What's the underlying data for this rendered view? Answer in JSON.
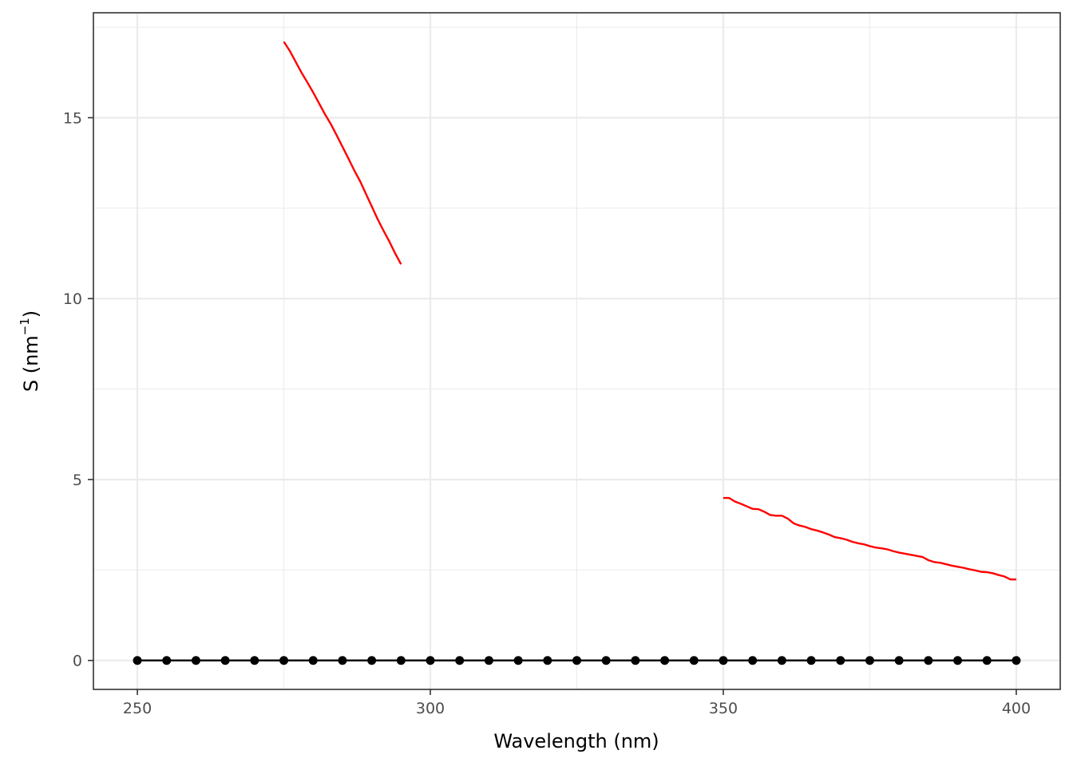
{
  "chart_data": {
    "type": "line",
    "xlabel": "Wavelength (nm)",
    "ylabel": {
      "prefix": "S (nm",
      "superscript": "−1",
      "suffix": ")"
    },
    "xlim": [
      242.5,
      407.5
    ],
    "ylim": [
      -0.8,
      17.9
    ],
    "x_ticks": [
      250,
      300,
      350,
      400
    ],
    "x_tick_labels": [
      "250",
      "300",
      "350",
      "400"
    ],
    "y_ticks": [
      0,
      5,
      10,
      15
    ],
    "y_tick_labels": [
      "0",
      "5",
      "10",
      "15"
    ],
    "grid": true,
    "legend": "none",
    "series": [
      {
        "style": "line+points",
        "color": "#000000",
        "x": [
          250,
          255,
          260,
          265,
          270,
          275,
          280,
          285,
          290,
          295,
          300,
          305,
          310,
          315,
          320,
          325,
          330,
          335,
          340,
          345,
          350,
          355,
          360,
          365,
          370,
          375,
          380,
          385,
          390,
          395,
          400
        ],
        "y": [
          0,
          0,
          0,
          0,
          0,
          0,
          0,
          0,
          0,
          0,
          0,
          0,
          0,
          0,
          0,
          0,
          0,
          0,
          0,
          0,
          0,
          0,
          0,
          0,
          0,
          0,
          0,
          0,
          0,
          0,
          0
        ]
      },
      {
        "style": "line",
        "color": "#ff0000",
        "x": [
          275,
          276,
          277,
          278,
          279,
          280,
          281,
          282,
          283,
          284,
          285,
          286,
          287,
          288,
          289,
          290,
          291,
          292,
          293,
          294,
          295
        ],
        "y": [
          17.1,
          16.85,
          16.55,
          16.25,
          15.98,
          15.7,
          15.4,
          15.1,
          14.83,
          14.52,
          14.2,
          13.88,
          13.55,
          13.25,
          12.9,
          12.55,
          12.2,
          11.88,
          11.58,
          11.25,
          10.95
        ]
      },
      {
        "style": "line",
        "color": "#ff0000",
        "x": [
          350,
          351,
          352,
          353,
          354,
          355,
          356,
          357,
          358,
          359,
          360,
          361,
          362,
          363,
          364,
          365,
          366,
          367,
          368,
          369,
          370,
          371,
          372,
          373,
          374,
          375,
          376,
          377,
          378,
          379,
          380,
          381,
          382,
          383,
          384,
          385,
          386,
          387,
          388,
          389,
          390,
          391,
          392,
          393,
          394,
          395,
          396,
          397,
          398,
          399,
          400
        ],
        "y": [
          4.49,
          4.49,
          4.39,
          4.33,
          4.26,
          4.19,
          4.18,
          4.11,
          4.02,
          4.0,
          4.0,
          3.92,
          3.79,
          3.73,
          3.69,
          3.63,
          3.59,
          3.54,
          3.48,
          3.41,
          3.38,
          3.34,
          3.28,
          3.24,
          3.21,
          3.16,
          3.12,
          3.1,
          3.07,
          3.02,
          2.98,
          2.95,
          2.92,
          2.89,
          2.86,
          2.77,
          2.72,
          2.7,
          2.66,
          2.62,
          2.59,
          2.56,
          2.52,
          2.49,
          2.45,
          2.44,
          2.41,
          2.36,
          2.32,
          2.24,
          2.24
        ]
      }
    ]
  }
}
